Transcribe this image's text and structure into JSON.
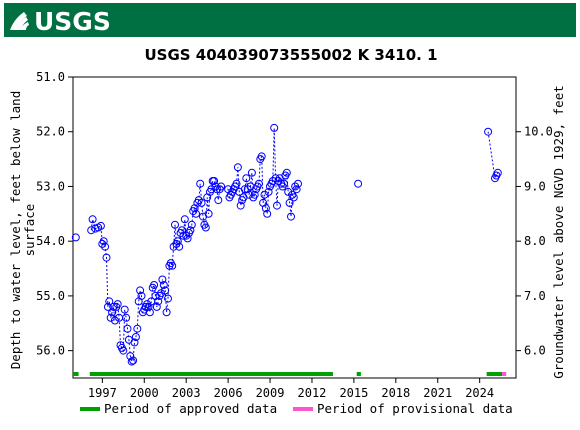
{
  "header": {
    "logo_text": "USGS",
    "brand_color": "#006f41"
  },
  "colors": {
    "series": "#0000ff",
    "approved": "#00a000",
    "provisional": "#ff55cc"
  },
  "chart_data": {
    "type": "scatter",
    "title": "USGS 404039073555002 K  3410. 1",
    "ylabel_left": "Depth to water level, feet below land surface",
    "ylabel_right": "Groundwater level above NGVD 1929, feet",
    "xlabel": "",
    "x_ticks": [
      "1997",
      "2000",
      "2003",
      "2006",
      "2009",
      "2012",
      "2015",
      "2018",
      "2021",
      "2024"
    ],
    "xlim": [
      1994.9,
      2026.6
    ],
    "ylim_left": [
      51.0,
      56.5
    ],
    "y_ticks_left": [
      "51.0",
      "52.0",
      "53.0",
      "54.0",
      "55.0",
      "56.0"
    ],
    "y_ticks_right": [
      "10.0",
      "9.0",
      "8.0",
      "7.0",
      "6.0"
    ],
    "right_axis_offset": 62.0,
    "y_inverted": true,
    "grid": false,
    "legend_position": "bottom",
    "legend": [
      {
        "label": "Period of approved data",
        "color": "#00a000"
      },
      {
        "label": "Period of provisional data",
        "color": "#ff55cc"
      }
    ],
    "approved_periods": [
      [
        1994.9,
        1995.3
      ],
      [
        1996.1,
        2013.5
      ],
      [
        2015.2,
        2015.5
      ],
      [
        2024.5,
        2025.6
      ]
    ],
    "provisional_periods": [
      [
        2025.6,
        2025.9
      ]
    ],
    "series": [
      {
        "segments": [
          [
            [
              1995.1,
              53.93
            ]
          ],
          [
            [
              1996.2,
              53.8
            ],
            [
              1996.3,
              53.6
            ],
            [
              1996.5,
              53.77
            ],
            [
              1996.7,
              53.75
            ],
            [
              1996.9,
              53.72
            ],
            [
              1997.0,
              54.05
            ],
            [
              1997.1,
              54.0
            ],
            [
              1997.2,
              54.1
            ],
            [
              1997.3,
              54.3
            ],
            [
              1997.4,
              55.2
            ],
            [
              1997.5,
              55.1
            ],
            [
              1997.6,
              55.4
            ],
            [
              1997.7,
              55.3
            ],
            [
              1997.8,
              55.2
            ],
            [
              1997.9,
              55.45
            ],
            [
              1998.0,
              55.2
            ],
            [
              1998.1,
              55.15
            ],
            [
              1998.2,
              55.4
            ],
            [
              1998.3,
              55.9
            ],
            [
              1998.4,
              55.95
            ],
            [
              1998.5,
              56.0
            ],
            [
              1998.6,
              55.25
            ],
            [
              1998.7,
              55.4
            ],
            [
              1998.8,
              55.6
            ],
            [
              1998.9,
              55.8
            ],
            [
              1999.0,
              56.1
            ],
            [
              1999.1,
              56.2
            ],
            [
              1999.2,
              56.18
            ],
            [
              1999.3,
              55.85
            ],
            [
              1999.4,
              55.75
            ],
            [
              1999.5,
              55.6
            ],
            [
              1999.6,
              55.1
            ],
            [
              1999.7,
              54.9
            ],
            [
              1999.8,
              55.0
            ],
            [
              1999.9,
              55.3
            ],
            [
              2000.0,
              55.25
            ],
            [
              2000.1,
              55.2
            ],
            [
              2000.2,
              55.15
            ],
            [
              2000.3,
              55.2
            ],
            [
              2000.4,
              55.3
            ],
            [
              2000.5,
              55.1
            ],
            [
              2000.6,
              54.85
            ],
            [
              2000.7,
              54.8
            ],
            [
              2000.8,
              55.0
            ],
            [
              2000.9,
              55.2
            ],
            [
              2001.0,
              55.1
            ],
            [
              2001.1,
              55.0
            ],
            [
              2001.2,
              54.95
            ],
            [
              2001.3,
              54.7
            ],
            [
              2001.4,
              54.8
            ],
            [
              2001.5,
              54.9
            ],
            [
              2001.6,
              55.3
            ],
            [
              2001.7,
              55.05
            ],
            [
              2001.8,
              54.45
            ],
            [
              2001.9,
              54.4
            ],
            [
              2002.0,
              54.45
            ],
            [
              2002.1,
              54.1
            ],
            [
              2002.2,
              53.7
            ],
            [
              2002.3,
              54.05
            ],
            [
              2002.4,
              54.0
            ],
            [
              2002.5,
              54.1
            ],
            [
              2002.6,
              53.85
            ],
            [
              2002.7,
              53.8
            ],
            [
              2002.8,
              53.9
            ],
            [
              2002.9,
              53.6
            ],
            [
              2003.0,
              53.9
            ],
            [
              2003.1,
              53.95
            ],
            [
              2003.2,
              53.85
            ],
            [
              2003.3,
              53.8
            ],
            [
              2003.4,
              53.7
            ],
            [
              2003.5,
              53.45
            ],
            [
              2003.6,
              53.4
            ],
            [
              2003.7,
              53.5
            ],
            [
              2003.8,
              53.3
            ],
            [
              2003.9,
              53.25
            ],
            [
              2004.0,
              52.95
            ],
            [
              2004.1,
              53.3
            ],
            [
              2004.2,
              53.55
            ],
            [
              2004.3,
              53.7
            ],
            [
              2004.4,
              53.75
            ],
            [
              2004.5,
              53.2
            ],
            [
              2004.6,
              53.5
            ],
            [
              2004.7,
              53.1
            ],
            [
              2004.8,
              53.05
            ],
            [
              2004.9,
              52.9
            ],
            [
              2005.0,
              52.9
            ],
            [
              2005.1,
              53.0
            ],
            [
              2005.2,
              53.05
            ],
            [
              2005.3,
              53.25
            ],
            [
              2005.4,
              53.05
            ],
            [
              2005.5,
              53.0
            ],
            [
              2006.0,
              53.05
            ],
            [
              2006.1,
              53.2
            ],
            [
              2006.2,
              53.15
            ],
            [
              2006.3,
              53.1
            ],
            [
              2006.4,
              53.05
            ],
            [
              2006.5,
              53.0
            ],
            [
              2006.6,
              52.95
            ],
            [
              2006.7,
              52.65
            ],
            [
              2006.8,
              53.1
            ],
            [
              2006.9,
              53.35
            ],
            [
              2007.0,
              53.25
            ],
            [
              2007.1,
              53.2
            ],
            [
              2007.2,
              53.05
            ],
            [
              2007.3,
              52.85
            ],
            [
              2007.4,
              53.05
            ],
            [
              2007.5,
              53.15
            ],
            [
              2007.6,
              53.0
            ],
            [
              2007.7,
              52.75
            ],
            [
              2007.8,
              53.2
            ],
            [
              2007.9,
              53.15
            ],
            [
              2008.0,
              53.05
            ],
            [
              2008.1,
              53.0
            ],
            [
              2008.2,
              52.95
            ],
            [
              2008.3,
              52.5
            ],
            [
              2008.4,
              52.45
            ],
            [
              2008.5,
              53.3
            ],
            [
              2008.6,
              53.15
            ],
            [
              2008.7,
              53.4
            ],
            [
              2008.8,
              53.5
            ],
            [
              2008.9,
              53.1
            ],
            [
              2009.0,
              53.0
            ],
            [
              2009.1,
              52.95
            ],
            [
              2009.2,
              52.9
            ],
            [
              2009.3,
              51.93
            ],
            [
              2009.4,
              52.85
            ],
            [
              2009.5,
              53.35
            ],
            [
              2009.6,
              52.9
            ],
            [
              2009.7,
              52.85
            ],
            [
              2009.8,
              52.95
            ],
            [
              2009.9,
              53.0
            ],
            [
              2010.0,
              52.95
            ],
            [
              2010.1,
              52.8
            ],
            [
              2010.2,
              52.75
            ],
            [
              2010.3,
              53.1
            ],
            [
              2010.4,
              53.3
            ],
            [
              2010.5,
              53.55
            ],
            [
              2010.6,
              53.15
            ],
            [
              2010.7,
              53.2
            ],
            [
              2010.8,
              53.0
            ],
            [
              2010.9,
              53.05
            ],
            [
              2011.0,
              52.95
            ]
          ],
          [
            [
              2015.3,
              52.95
            ]
          ],
          [
            [
              2024.6,
              52.0
            ],
            [
              2025.1,
              52.85
            ],
            [
              2025.2,
              52.8
            ],
            [
              2025.3,
              52.75
            ]
          ]
        ]
      }
    ]
  }
}
